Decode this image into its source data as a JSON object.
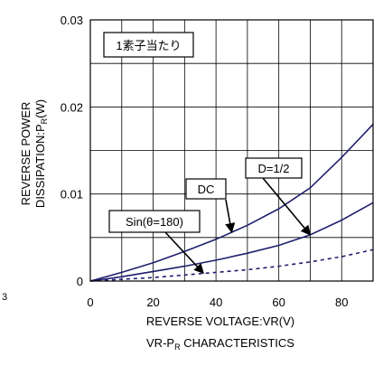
{
  "chart_data": {
    "type": "line",
    "title": "VR-PR CHARACTERISTICS",
    "title_main": "VR-P",
    "title_sub": "R",
    "title_tail": " CHARACTERISTICS",
    "xlabel": "REVERSE VOLTAGE:VR(V)",
    "ylabel_line1": "REVERSE POWER",
    "ylabel_line2_main": "DISSIPATION:P",
    "ylabel_line2_sub": "R",
    "ylabel_line2_tail": "(W)",
    "xlim": [
      0,
      90
    ],
    "ylim": [
      0,
      0.03
    ],
    "x_ticks": [
      0,
      20,
      40,
      60,
      80
    ],
    "x_tick_labels": [
      "0",
      "20",
      "40",
      "60",
      "80"
    ],
    "x_grid": [
      0,
      10,
      20,
      30,
      40,
      50,
      60,
      70,
      80,
      90
    ],
    "y_ticks": [
      0,
      0.01,
      0.02,
      0.03
    ],
    "y_tick_labels": [
      "0",
      "0.01",
      "0.02",
      "0.03"
    ],
    "y_grid": [
      0,
      0.005,
      0.01,
      0.015,
      0.02,
      0.025,
      0.03
    ],
    "grid": true,
    "box_label": "1素子当たり",
    "series": [
      {
        "name": "DC",
        "style": "solid",
        "color": "#1f1f6e",
        "x": [
          0,
          10,
          20,
          30,
          40,
          50,
          60,
          70,
          80,
          90
        ],
        "y": [
          0,
          0.001,
          0.0021,
          0.0034,
          0.0048,
          0.0064,
          0.0083,
          0.0107,
          0.0142,
          0.018
        ]
      },
      {
        "name": "D=1/2",
        "style": "solid",
        "color": "#1f1f6e",
        "x": [
          0,
          10,
          20,
          30,
          40,
          50,
          60,
          70,
          80,
          90
        ],
        "y": [
          0,
          0.0005,
          0.0011,
          0.0017,
          0.0024,
          0.0032,
          0.0041,
          0.0053,
          0.007,
          0.009
        ]
      },
      {
        "name": "Sin(θ=180)",
        "style": "dashed",
        "color": "#1f1f6e",
        "x": [
          0,
          10,
          20,
          30,
          40,
          50,
          60,
          70,
          80,
          90
        ],
        "y": [
          0,
          0.0002,
          0.0004,
          0.0007,
          0.001,
          0.0013,
          0.0017,
          0.0022,
          0.0028,
          0.0036
        ]
      }
    ],
    "annotations": [
      {
        "text": "DC",
        "series": 0
      },
      {
        "text": "D=1/2",
        "series": 1
      },
      {
        "text": "Sin(θ=180)",
        "series": 2
      }
    ],
    "page_edge_text": "3"
  }
}
